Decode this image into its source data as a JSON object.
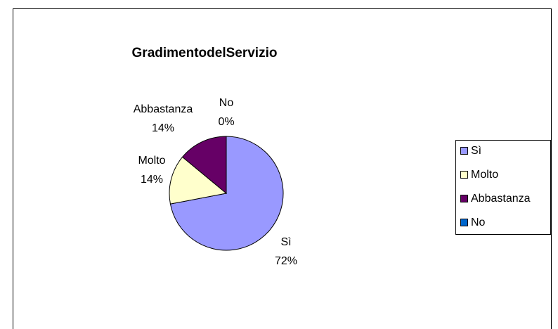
{
  "chart_data": {
    "type": "pie",
    "title": "GradimentodelServizio",
    "categories": [
      "Sì",
      "Molto",
      "Abbastanza",
      "No"
    ],
    "values": [
      72,
      14,
      14,
      0
    ],
    "value_labels": [
      "72%",
      "14%",
      "14%",
      "0%"
    ],
    "colors": [
      "#9999ff",
      "#ffffcc",
      "#660066",
      "#0066cc"
    ],
    "legend": "right"
  }
}
